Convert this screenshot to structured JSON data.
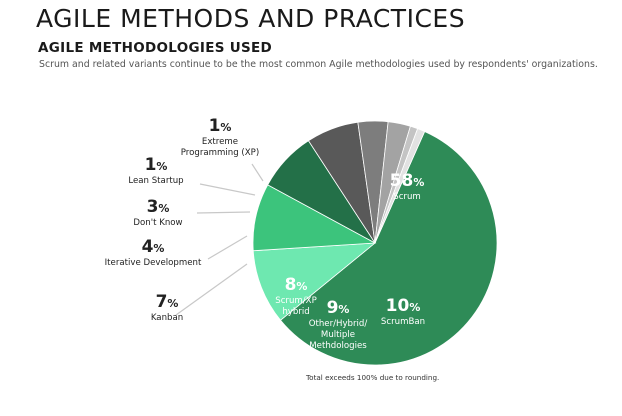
{
  "header": {
    "title": "AGILE METHODS AND PRACTICES",
    "subtitle": "AGILE METHODOLOGIES USED",
    "description": "Scrum and related variants continue to be the most common Agile methodologies used by respondents' organizations."
  },
  "footnote": "Total exceeds 100% due to rounding.",
  "chart_data": {
    "type": "pie",
    "slices": [
      {
        "label": "Scrum",
        "value": 58,
        "pct_text": "58%",
        "color": "#2e8b57"
      },
      {
        "label": "ScrumBan",
        "value": 10,
        "pct_text": "10%",
        "color": "#6ee8b0"
      },
      {
        "label": "Other/Hybrid/ Multiple Methodologies",
        "value": 9,
        "pct_text": "9%",
        "color": "#3cc47c"
      },
      {
        "label": "Scrum/XP hybrid",
        "value": 8,
        "pct_text": "8%",
        "color": "#237048"
      },
      {
        "label": "Kanban",
        "value": 7,
        "pct_text": "7%",
        "color": "#595959"
      },
      {
        "label": "Iterative Development",
        "value": 4,
        "pct_text": "4%",
        "color": "#7d7d7d"
      },
      {
        "label": "Don't Know",
        "value": 3,
        "pct_text": "3%",
        "color": "#a3a3a3"
      },
      {
        "label": "Lean Startup",
        "value": 1,
        "pct_text": "1%",
        "color": "#c4c4c4"
      },
      {
        "label": "Extreme Programming (XP)",
        "value": 1,
        "pct_text": "1%",
        "color": "#e2e2e2"
      }
    ]
  }
}
